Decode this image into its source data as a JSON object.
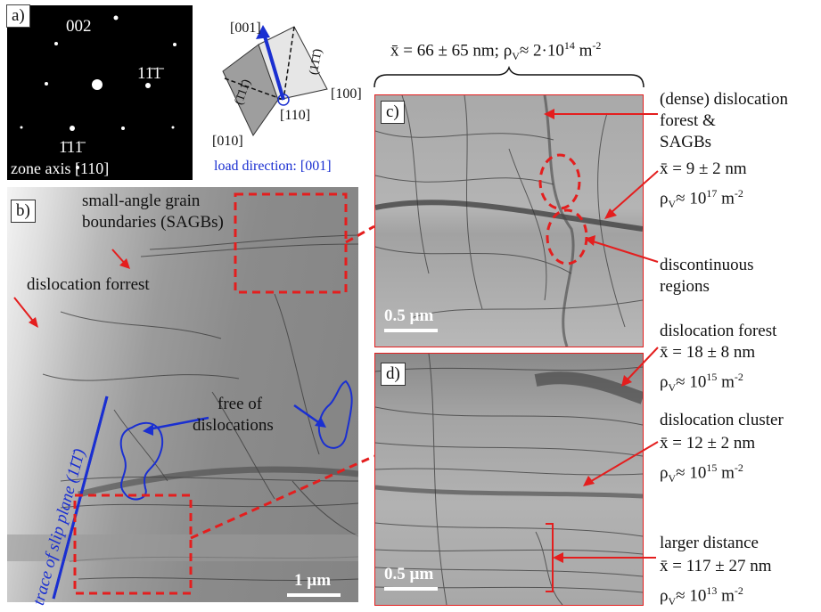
{
  "panel_a": {
    "label": "a)",
    "spot_002": "002",
    "spot_1": "11̄1̄",
    "spot_2": "1̄11̄",
    "zone_axis": "zone axis [110]"
  },
  "orientation": {
    "dir_001": "[001]",
    "dir_100": "[100]",
    "dir_010": "[010]",
    "dir_110": "[110]",
    "plane_a": "(1̄11̄)",
    "plane_b": "(11̄1̄)",
    "load_direction": "load direction: [001]"
  },
  "panel_b": {
    "label": "b)",
    "sagb_line1": "small-angle grain",
    "sagb_line2": "boundaries (SAGBs)",
    "forest": "dislocation forrest",
    "free_line1": "free of",
    "free_line2": "dislocations",
    "trace_prefix": "trace  of slip plane (",
    "trace_plane": "11̄1̄",
    "trace_suffix": ")",
    "scale": "1 µm"
  },
  "overall_stats": {
    "x_mean": "x̄ = 66 ± 65 nm; ρ",
    "rho_sub": "V",
    "rho_val": "≈ 2·10",
    "rho_exp": "14",
    "rho_unit": " m",
    "rho_unit_exp": "-2"
  },
  "panel_c": {
    "label": "c)",
    "scale": "0.5 µm",
    "dense_line1": "(dense) dislocation",
    "dense_line2": "forest &",
    "dense_line3": "SAGBs",
    "dense_x": "x̄ = 9 ± 2 nm",
    "dense_rho": "≈ 10",
    "dense_rho_exp": "17",
    "discont_line1": "discontinuous",
    "discont_line2": "regions"
  },
  "panel_d": {
    "label": "d)",
    "scale": "0.5 µm",
    "forest_title": "dislocation forest",
    "forest_x": "x̄ = 18 ± 8 nm",
    "forest_rho": "≈ 10",
    "forest_rho_exp": "15",
    "cluster_title": "dislocation cluster",
    "cluster_x": "x̄ = 12 ± 2 nm",
    "cluster_rho": "≈ 10",
    "cluster_rho_exp": "15",
    "larger_title": "larger distance",
    "larger_x": "x̄ = 117 ± 27 nm",
    "larger_rho": "≈ 10",
    "larger_rho_exp": "13"
  },
  "common": {
    "rho": "ρ",
    "rho_sub": "V",
    "unit": " m",
    "unit_exp": "-2"
  },
  "colors": {
    "annotation_red": "#e41e1e",
    "load_blue": "#1a2fd1",
    "tem_bg": "#8e8e8e"
  }
}
